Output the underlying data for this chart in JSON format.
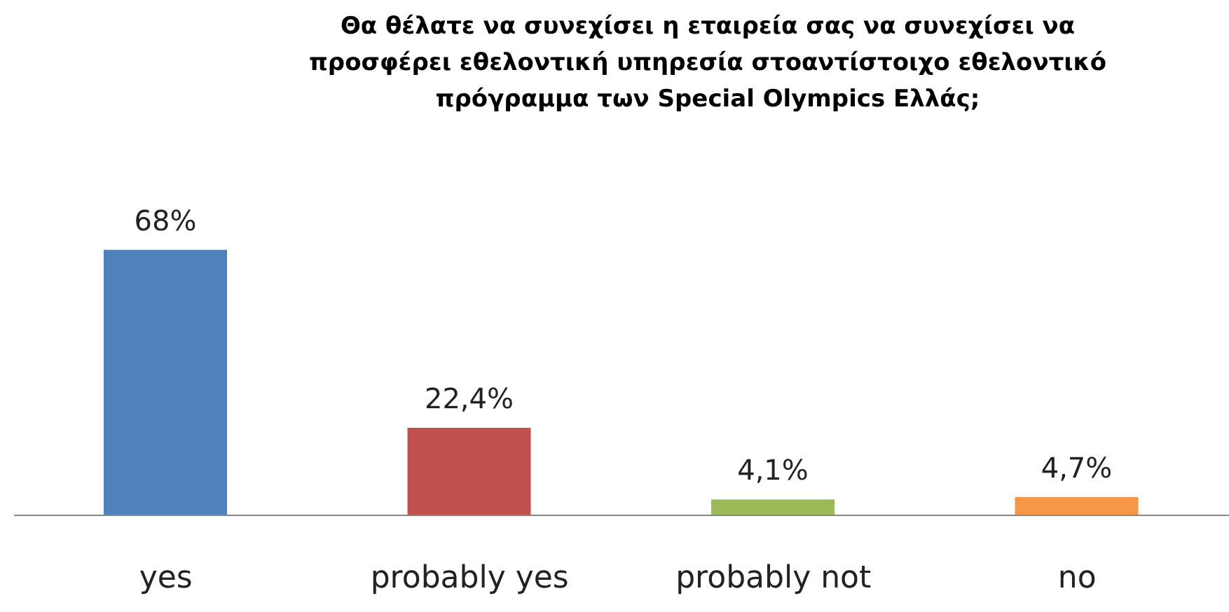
{
  "chart_data": {
    "type": "bar",
    "title": "Θα θέλατε να συνεχίσει η εταιρεία σας να συνεχίσει να\nπροσφέρει εθελοντική υπηρεσία στοαντίστοιχο εθελοντικό\nπρόγραμμα των Special Olympics Ελλάς;",
    "categories": [
      "yes",
      "probably yes",
      "probably not",
      "no"
    ],
    "values": [
      68,
      22.4,
      4.1,
      4.7
    ],
    "value_labels": [
      "68%",
      "22,4%",
      "4,1%",
      "4,7%"
    ],
    "colors": [
      "#4f81bd",
      "#c0504d",
      "#9bbb59",
      "#f79646"
    ]
  }
}
